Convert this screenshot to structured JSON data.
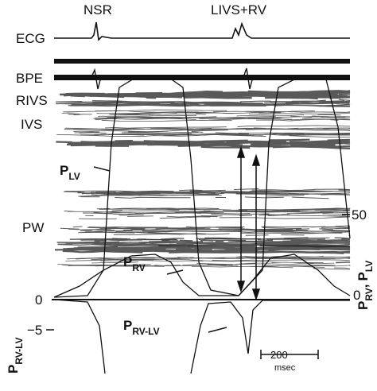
{
  "top_labels": [
    "NSR",
    "LIVS+RV"
  ],
  "trace_labels": {
    "ecg": "ECG",
    "bpe": "BPE",
    "rivs": "RIVS",
    "ivs": "IVS",
    "pw": "PW"
  },
  "pressure_labels": {
    "p_lv": {
      "symbol": "P",
      "sub": "LV"
    },
    "p_rv": {
      "symbol": "P",
      "sub": "RV"
    },
    "p_rv_lv": {
      "symbol": "P",
      "sub": "RV-LV"
    }
  },
  "axis": {
    "left_zero": "0",
    "left_minus": "−5",
    "right_zero": "0",
    "right_fifty": "50",
    "left_title": {
      "symbol": "P",
      "sub": "RV-LV"
    },
    "right_title": {
      "symbol": "P",
      "sub": "RV",
      "sep": ",",
      "symbol2": "P",
      "sub2": "LV"
    }
  },
  "scale_bar": {
    "value": "200",
    "unit": "msec"
  }
}
